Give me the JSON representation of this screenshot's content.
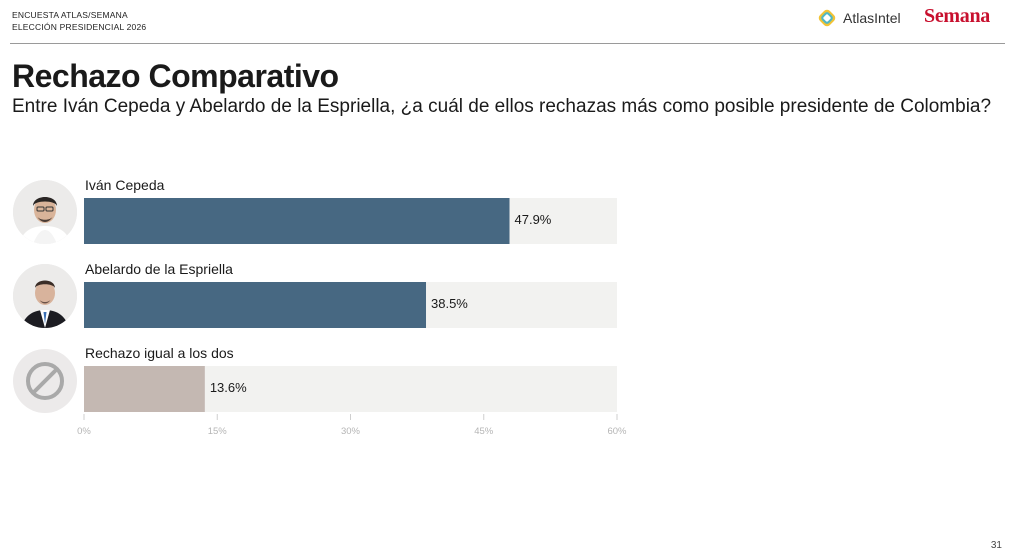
{
  "header": {
    "line1": "ENCUESTA ATLAS/SEMANA",
    "line2": "ELECCIÓN PRESIDENCIAL 2026",
    "brand_atlas": "AtlasIntel",
    "brand_semana": "Semana"
  },
  "page_number": "31",
  "colors": {
    "candidate_bar": "#476882",
    "neutral_bar": "#c4b8b2",
    "track": "#f2f2f0"
  },
  "chart_data": {
    "type": "bar",
    "orientation": "horizontal",
    "title": "Rechazo Comparativo",
    "subtitle": "Entre Iván Cepeda y Abelardo de la Espriella, ¿a cuál de ellos rechazas más como posible presidente de Colombia?",
    "categories": [
      "Iván Cepeda",
      "Abelardo de la Espriella",
      "Rechazo igual a los dos"
    ],
    "values": [
      47.9,
      38.5,
      13.6
    ],
    "value_labels": [
      "47.9%",
      "38.5%",
      "13.6%"
    ],
    "xlim": [
      0,
      60
    ],
    "xticks": [
      "0%",
      "15%",
      "30%",
      "45%",
      "60%"
    ],
    "grid": false,
    "legend": "none",
    "xlabel": "",
    "ylabel": ""
  }
}
